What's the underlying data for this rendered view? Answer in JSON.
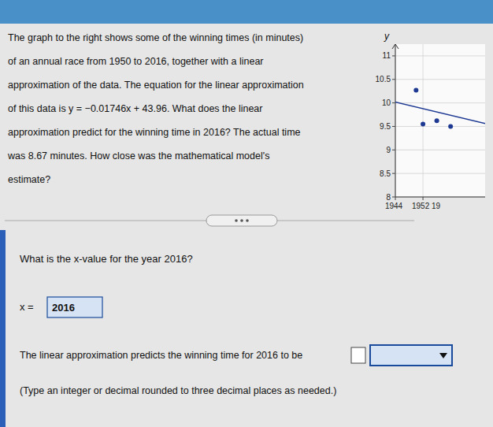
{
  "chart_data": {
    "type": "scatter",
    "annotations": [
      "The graph to the right shows some of the winning times (in minutes)",
      "of an annual race from 1950 to 2016, together with a linear",
      "approximation of the data. The equation for the linear approximation",
      "of this data is y = −0.01746x + 43.96. What does the linear",
      "approximation predict for the winning time in 2016? The actual time",
      "was 8.67 minutes. How close was the mathematical model's",
      "estimate?",
      "What is the x-value for the year 2016?",
      "x = ",
      "2016",
      "The linear approximation predicts the winning time for 2016 to be",
      "(Type an integer or decimal rounded to three decimal places as needed.)"
    ],
    "y_label": "y",
    "series": [
      {
        "type": "scatter",
        "color": "#1f3a93",
        "x": [
          1950,
          1952,
          1956,
          1960
        ],
        "values": [
          10.27,
          9.55,
          9.62,
          9.5
        ]
      },
      {
        "type": "line",
        "color": "#1f3a93",
        "x": [
          1944,
          1970
        ],
        "values": [
          10.01776,
          9.5638
        ]
      }
    ],
    "xlim": [
      1944,
      1970
    ],
    "ylim": [
      8.0,
      11.25
    ],
    "xticks": [
      1944,
      {
        "value": 1952,
        "label": "1952 19"
      }
    ],
    "yticks": [
      8.0,
      8.5,
      9.0,
      9.5,
      10.0,
      10.5,
      11.0
    ],
    "grid": true
  }
}
